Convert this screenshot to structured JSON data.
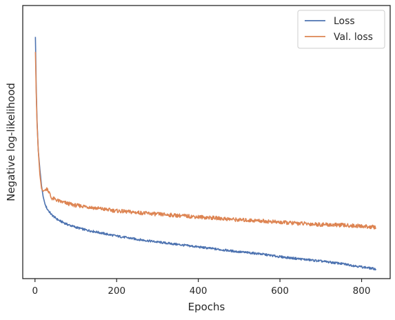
{
  "chart_data": {
    "type": "line",
    "title": "",
    "xlabel": "Epochs",
    "ylabel": "Negative log-likelihood",
    "xlim": [
      -30,
      870
    ],
    "ylim": [
      0,
      1
    ],
    "xticks": [
      0,
      200,
      400,
      600,
      800
    ],
    "yticks_shown": false,
    "grid": false,
    "legend_position": "top-right",
    "series": [
      {
        "name": "Loss",
        "color": "#4c72b0",
        "x": [
          1,
          2,
          3,
          5,
          8,
          12,
          16,
          20,
          25,
          30,
          35,
          40,
          50,
          60,
          80,
          100,
          125,
          150,
          175,
          200,
          250,
          300,
          350,
          400,
          450,
          500,
          550,
          600,
          650,
          700,
          750,
          800,
          835
        ],
        "y": [
          0.885,
          0.8,
          0.7,
          0.58,
          0.47,
          0.4,
          0.34,
          0.3,
          0.27,
          0.255,
          0.245,
          0.235,
          0.222,
          0.212,
          0.198,
          0.188,
          0.178,
          0.171,
          0.163,
          0.156,
          0.144,
          0.134,
          0.125,
          0.116,
          0.107,
          0.098,
          0.091,
          0.08,
          0.072,
          0.064,
          0.055,
          0.043,
          0.035
        ]
      },
      {
        "name": "Val. loss",
        "color": "#dd8452",
        "x": [
          1,
          2,
          3,
          5,
          8,
          12,
          16,
          20,
          25,
          30,
          35,
          40,
          50,
          60,
          80,
          100,
          125,
          150,
          175,
          200,
          250,
          300,
          350,
          400,
          450,
          500,
          550,
          600,
          650,
          700,
          750,
          800,
          835
        ],
        "y": [
          0.83,
          0.76,
          0.68,
          0.57,
          0.47,
          0.38,
          0.33,
          0.32,
          0.325,
          0.33,
          0.315,
          0.295,
          0.29,
          0.283,
          0.275,
          0.268,
          0.264,
          0.258,
          0.253,
          0.248,
          0.242,
          0.236,
          0.231,
          0.226,
          0.221,
          0.215,
          0.212,
          0.206,
          0.202,
          0.198,
          0.196,
          0.192,
          0.188
        ]
      }
    ]
  }
}
